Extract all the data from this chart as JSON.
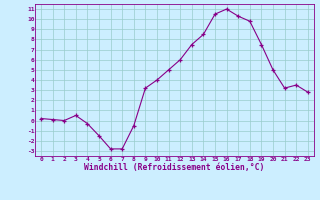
{
  "x": [
    0,
    1,
    2,
    3,
    4,
    5,
    6,
    7,
    8,
    9,
    10,
    11,
    12,
    13,
    14,
    15,
    16,
    17,
    18,
    19,
    20,
    21,
    22,
    23
  ],
  "y": [
    0.2,
    0.1,
    0.0,
    0.5,
    -0.3,
    -1.5,
    -2.8,
    -2.8,
    -0.5,
    3.2,
    4.0,
    5.0,
    6.0,
    7.5,
    8.5,
    10.5,
    11.0,
    10.3,
    9.8,
    7.5,
    5.0,
    3.2,
    3.5,
    2.8
  ],
  "xlabel": "Windchill (Refroidissement éolien,°C)",
  "line_color": "#880088",
  "marker": "+",
  "marker_size": 3,
  "bg_color": "#cceeff",
  "grid_color": "#99cccc",
  "xlim": [
    -0.5,
    23.5
  ],
  "ylim": [
    -3.5,
    11.5
  ],
  "xticks": [
    0,
    1,
    2,
    3,
    4,
    5,
    6,
    7,
    8,
    9,
    10,
    11,
    12,
    13,
    14,
    15,
    16,
    17,
    18,
    19,
    20,
    21,
    22,
    23
  ],
  "yticks": [
    -3,
    -2,
    -1,
    0,
    1,
    2,
    3,
    4,
    5,
    6,
    7,
    8,
    9,
    10,
    11
  ]
}
